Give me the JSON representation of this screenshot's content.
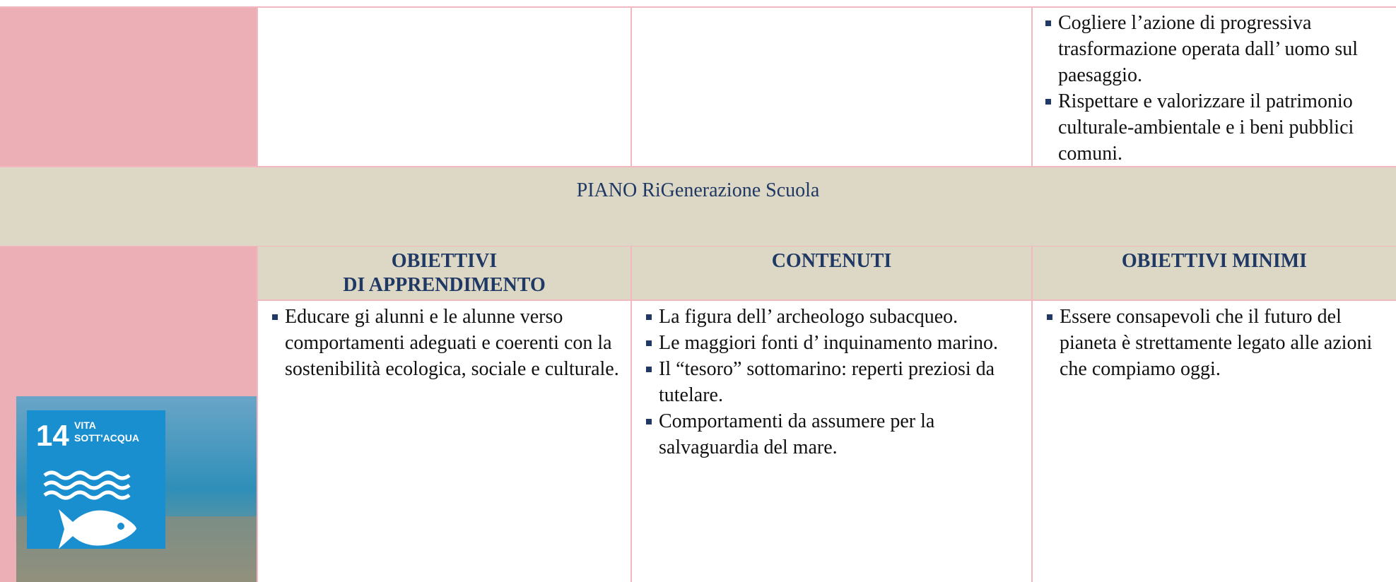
{
  "top_row": {
    "bullets": [
      "Cogliere l’azione di progressiva trasformazione operata dall’ uomo sul paesaggio.",
      "Rispettare e valorizzare il patrimonio culturale-ambientale e i beni pubblici comuni."
    ]
  },
  "banner": {
    "title": "PIANO RiGenerazione Scuola"
  },
  "headers": [
    [
      "OBIETTIVI",
      "DI APPRENDIMENTO"
    ],
    [
      "CONTENUTI"
    ],
    [
      "OBIETTIVI MINIMI"
    ]
  ],
  "columns": [
    {
      "bullets": [
        "Educare gi alunni e le alunne verso comportamenti adeguati e coerenti con la sostenibilità ecologica, sociale e culturale."
      ]
    },
    {
      "bullets": [
        "La figura dell’ archeologo subacqueo.",
        "Le maggiori fonti d’ inquinamento marino.",
        "Il “tesoro” sottomarino: reperti preziosi  da tutelare.",
        "Comportamenti da assumere per la salvaguardia del mare."
      ]
    },
    {
      "bullets": [
        "Essere consapevoli che il futuro del pianeta è strettamente legato alle azioni che compiamo oggi."
      ]
    }
  ],
  "icon": {
    "number": "14",
    "line1": "VITA",
    "line2": "SOTT'ACQUA"
  }
}
